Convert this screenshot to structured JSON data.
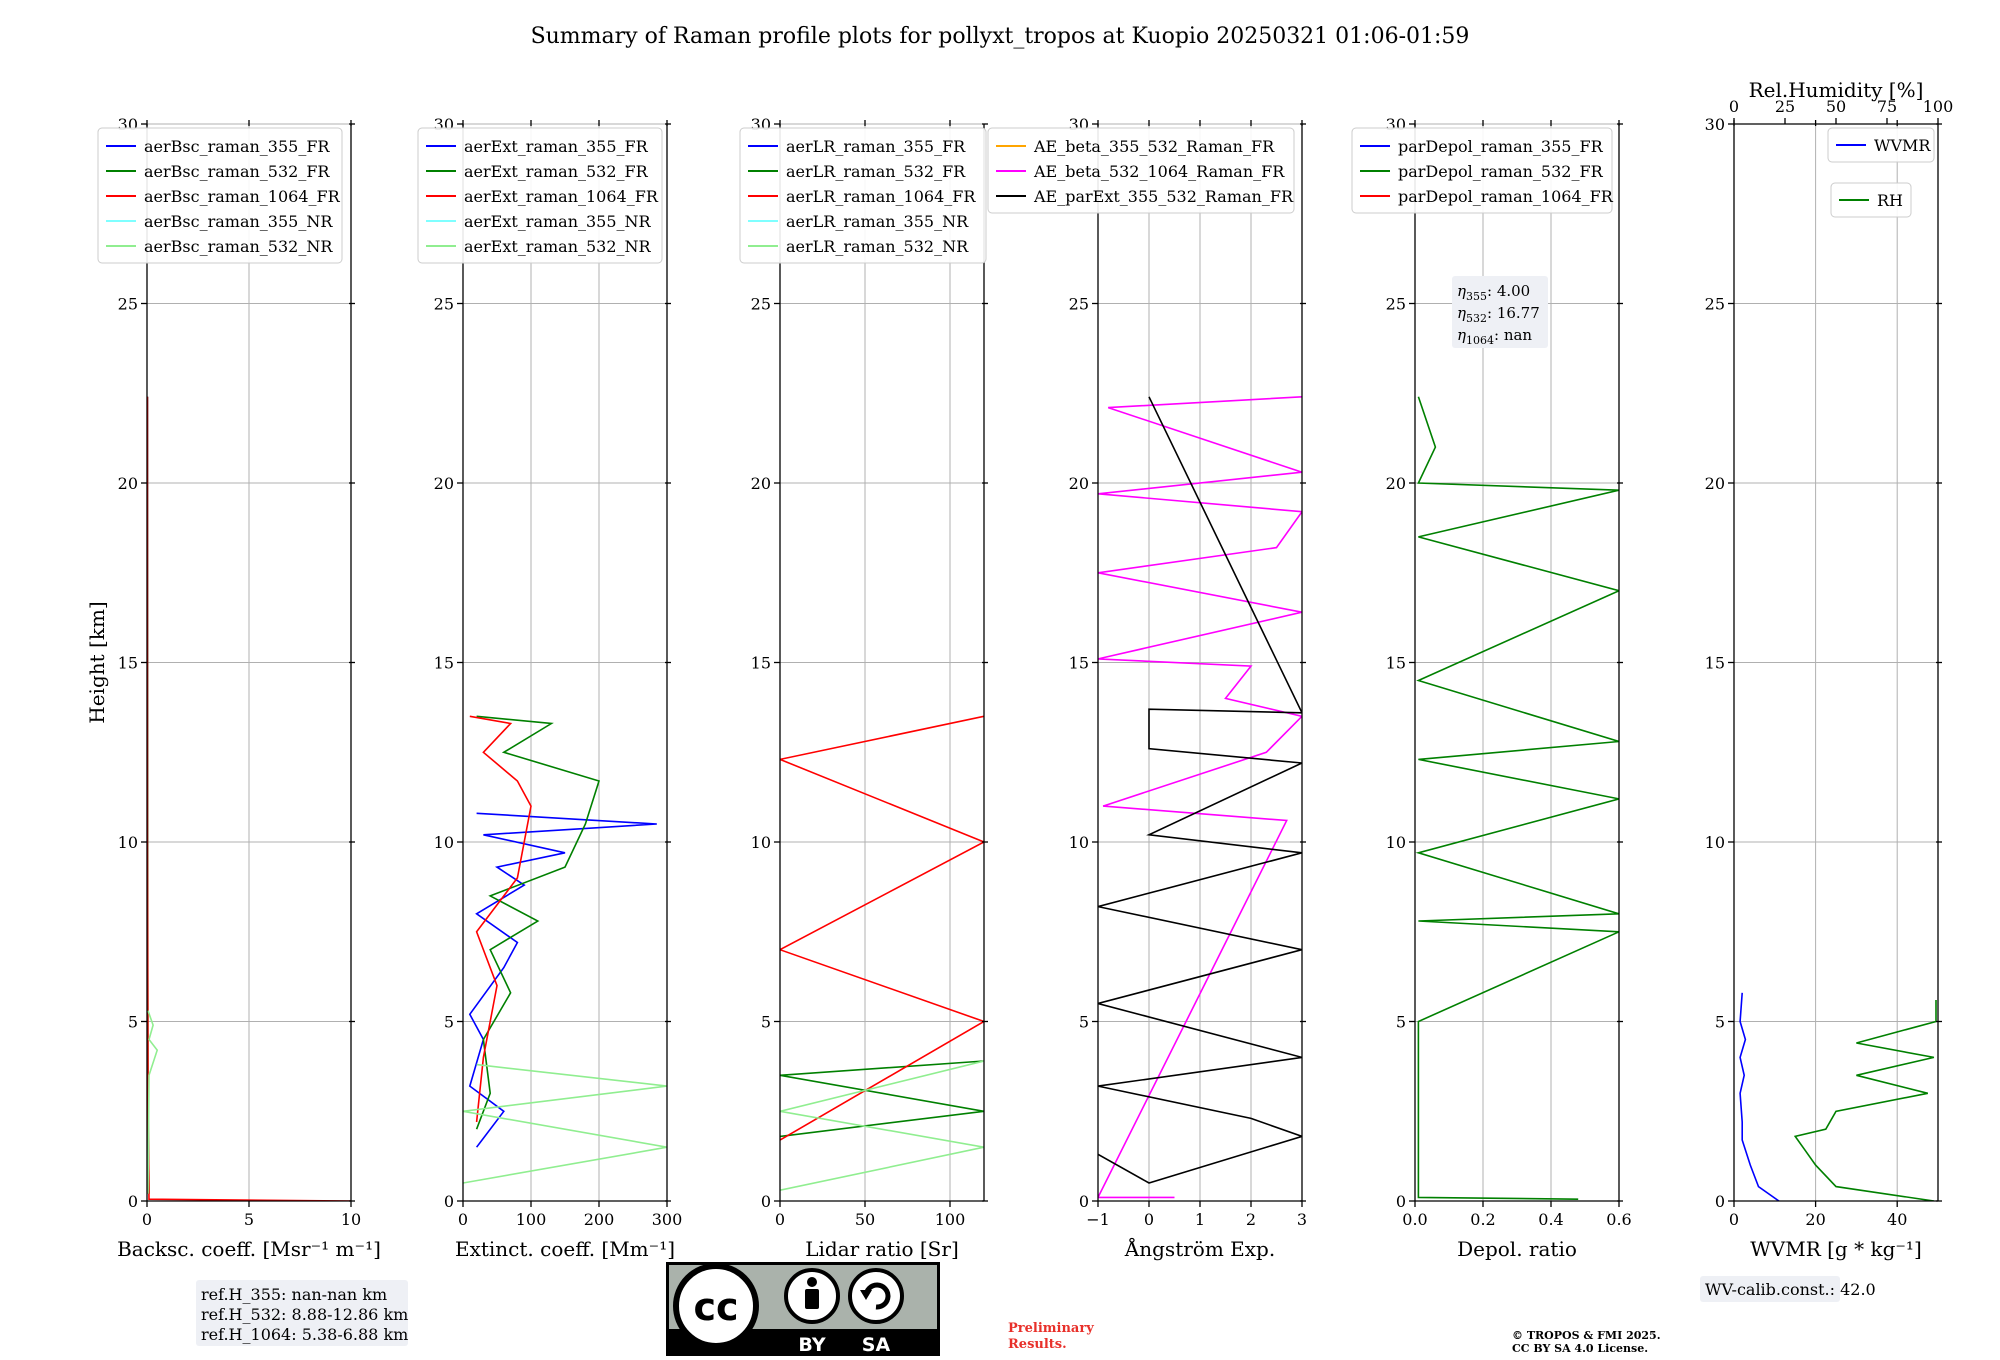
{
  "title": "Summary of Raman profile plots for pollyxt_tropos at Kuopio 20250321 01:06-01:59",
  "colors": {
    "blue": "#0000ff",
    "green": "#008000",
    "red": "#ff0000",
    "cyan": "#7fffff",
    "lightgreen": "#90ee90",
    "orange": "#ffa500",
    "magenta": "#ff00ff",
    "black": "#000000"
  },
  "chart_data": [
    {
      "type": "line",
      "panel": "backscatter",
      "ylabel": "Height [km]",
      "xlabel": "Backsc. coeff. [Msr⁻¹ m⁻¹]",
      "xlim": [
        0,
        10
      ],
      "ylim": [
        0,
        30
      ],
      "xticks": [
        0,
        5,
        10
      ],
      "xtick_labels": [
        "0",
        "5",
        "10"
      ],
      "yticks": [
        0,
        5,
        10,
        15,
        20,
        25,
        30
      ],
      "ytick_labels": [
        "0",
        "5",
        "10",
        "15",
        "20",
        "25",
        "30"
      ],
      "legend": "top-right",
      "series": [
        {
          "name": "aerBsc_raman_355_FR",
          "color": "blue",
          "points": [
            [
              0.05,
              0.2
            ],
            [
              0.03,
              3
            ],
            [
              0.02,
              10
            ],
            [
              0.02,
              22.4
            ]
          ]
        },
        {
          "name": "aerBsc_raman_532_FR",
          "color": "green",
          "points": [
            [
              0.1,
              0.2
            ],
            [
              0.05,
              3
            ],
            [
              0.03,
              10
            ],
            [
              0.02,
              22.4
            ]
          ]
        },
        {
          "name": "aerBsc_raman_1064_FR",
          "color": "red",
          "points": [
            [
              10,
              0.0
            ],
            [
              0.1,
              0.05
            ],
            [
              0.05,
              3
            ],
            [
              0.02,
              10
            ],
            [
              0.02,
              22.4
            ]
          ]
        },
        {
          "name": "aerBsc_raman_355_NR",
          "color": "cyan",
          "points": []
        },
        {
          "name": "aerBsc_raman_532_NR",
          "color": "lightgreen",
          "points": [
            [
              0.05,
              0.2
            ],
            [
              0.1,
              3.5
            ],
            [
              0.5,
              4.2
            ],
            [
              0.1,
              4.5
            ],
            [
              0.3,
              4.9
            ],
            [
              0.05,
              5.3
            ]
          ]
        }
      ],
      "info": [
        "ref.H_355: nan-nan km",
        "ref.H_532: 8.88-12.86 km",
        "ref.H_1064: 5.38-6.88 km"
      ]
    },
    {
      "type": "line",
      "panel": "extinction",
      "xlabel": "Extinct. coeff. [Mm⁻¹]",
      "xlim": [
        0,
        300
      ],
      "ylim": [
        0,
        30
      ],
      "xticks": [
        0,
        100,
        200,
        300
      ],
      "xtick_labels": [
        "0",
        "100",
        "200",
        "300"
      ],
      "yticks": [
        0,
        5,
        10,
        15,
        20,
        25,
        30
      ],
      "ytick_labels": [
        "0",
        "5",
        "10",
        "15",
        "20",
        "25",
        "30"
      ],
      "legend": "top-right",
      "series": [
        {
          "name": "aerExt_raman_355_FR",
          "color": "blue",
          "points": [
            [
              20,
              1.5
            ],
            [
              60,
              2.5
            ],
            [
              10,
              3.2
            ],
            [
              30,
              4.5
            ],
            [
              10,
              5.2
            ],
            [
              60,
              6.5
            ],
            [
              80,
              7.2
            ],
            [
              20,
              8
            ],
            [
              90,
              8.8
            ],
            [
              50,
              9.3
            ],
            [
              150,
              9.7
            ],
            [
              30,
              10.2
            ],
            [
              285,
              10.5
            ],
            [
              20,
              10.8
            ]
          ]
        },
        {
          "name": "aerExt_raman_532_FR",
          "color": "green",
          "points": [
            [
              20,
              2
            ],
            [
              40,
              3
            ],
            [
              30,
              4.5
            ],
            [
              70,
              5.8
            ],
            [
              40,
              7
            ],
            [
              110,
              7.8
            ],
            [
              40,
              8.5
            ],
            [
              150,
              9.3
            ],
            [
              180,
              10.5
            ],
            [
              200,
              11.7
            ],
            [
              60,
              12.5
            ],
            [
              130,
              13.3
            ],
            [
              20,
              13.5
            ]
          ]
        },
        {
          "name": "aerExt_raman_1064_FR",
          "color": "red",
          "points": [
            [
              20,
              2.2
            ],
            [
              30,
              4
            ],
            [
              50,
              6
            ],
            [
              20,
              7.5
            ],
            [
              80,
              9
            ],
            [
              100,
              11
            ],
            [
              80,
              11.7
            ],
            [
              30,
              12.5
            ],
            [
              70,
              13.3
            ],
            [
              10,
              13.5
            ]
          ]
        },
        {
          "name": "aerExt_raman_355_NR",
          "color": "cyan",
          "points": []
        },
        {
          "name": "aerExt_raman_532_NR",
          "color": "lightgreen",
          "points": [
            [
              0,
              0.5
            ],
            [
              300,
              1.5
            ],
            [
              0,
              2.5
            ],
            [
              300,
              3.2
            ],
            [
              20,
              3.8
            ]
          ]
        }
      ]
    },
    {
      "type": "line",
      "panel": "lidar_ratio",
      "xlabel": "Lidar ratio [Sr]",
      "xlim": [
        0,
        120
      ],
      "ylim": [
        0,
        30
      ],
      "xticks": [
        0,
        50,
        100
      ],
      "xtick_labels": [
        "0",
        "50",
        "100"
      ],
      "yticks": [
        0,
        5,
        10,
        15,
        20,
        25,
        30
      ],
      "ytick_labels": [
        "0",
        "5",
        "10",
        "15",
        "20",
        "25",
        "30"
      ],
      "legend": "top-right",
      "series": [
        {
          "name": "aerLR_raman_355_FR",
          "color": "blue",
          "points": []
        },
        {
          "name": "aerLR_raman_532_FR",
          "color": "green",
          "points": [
            [
              0,
              1.8
            ],
            [
              120,
              2.5
            ],
            [
              0,
              3.5
            ],
            [
              120,
              3.9
            ]
          ]
        },
        {
          "name": "aerLR_raman_1064_FR",
          "color": "red",
          "points": [
            [
              0,
              1.7
            ],
            [
              120,
              5
            ],
            [
              0,
              7
            ],
            [
              120,
              10
            ],
            [
              0,
              12.3
            ],
            [
              120,
              13.5
            ]
          ]
        },
        {
          "name": "aerLR_raman_355_NR",
          "color": "cyan",
          "points": []
        },
        {
          "name": "aerLR_raman_532_NR",
          "color": "lightgreen",
          "points": [
            [
              0,
              0.3
            ],
            [
              120,
              1.5
            ],
            [
              0,
              2.5
            ],
            [
              120,
              3.9
            ]
          ]
        }
      ]
    },
    {
      "type": "line",
      "panel": "angstrom",
      "xlabel": "Ångström Exp.",
      "xlim": [
        -1,
        3
      ],
      "ylim": [
        0,
        30
      ],
      "xticks": [
        -1,
        0,
        1,
        2,
        3
      ],
      "xtick_labels": [
        "−1",
        "0",
        "1",
        "2",
        "3"
      ],
      "yticks": [
        0,
        5,
        10,
        15,
        20,
        25,
        30
      ],
      "ytick_labels": [
        "0",
        "5",
        "10",
        "15",
        "20",
        "25",
        "30"
      ],
      "legend": "top-right",
      "series": [
        {
          "name": "AE_beta_355_532_Raman_FR",
          "color": "orange",
          "points": []
        },
        {
          "name": "AE_beta_532_1064_Raman_FR",
          "color": "magenta",
          "points": [
            [
              0.5,
              0.1
            ],
            [
              -1,
              0.1
            ],
            [
              2.7,
              10.6
            ],
            [
              -0.9,
              11
            ],
            [
              2.3,
              12.5
            ],
            [
              3,
              13.5
            ],
            [
              1.5,
              14
            ],
            [
              2,
              14.9
            ],
            [
              -1,
              15.1
            ],
            [
              3,
              16.4
            ],
            [
              -1,
              17.5
            ],
            [
              2.5,
              18.2
            ],
            [
              3,
              19.2
            ],
            [
              -1,
              19.7
            ],
            [
              3,
              20.3
            ],
            [
              -0.8,
              22.1
            ],
            [
              3,
              22.4
            ]
          ]
        },
        {
          "name": "AE_parExt_355_532_Raman_FR",
          "color": "black",
          "points": [
            [
              -1,
              1.3
            ],
            [
              0,
              0.5
            ],
            [
              3,
              1.8
            ],
            [
              2,
              2.3
            ],
            [
              -1,
              3.2
            ],
            [
              3,
              4
            ],
            [
              -1,
              5.5
            ],
            [
              3,
              7
            ],
            [
              -1,
              8.2
            ],
            [
              3,
              9.7
            ],
            [
              0,
              10.2
            ],
            [
              3,
              12.2
            ],
            [
              0,
              12.6
            ],
            [
              0,
              13.7
            ],
            [
              3,
              13.6
            ],
            [
              0,
              22.4
            ]
          ]
        }
      ],
      "legend_note": "legend lists AE_beta_355_532_Raman_FR, AE_beta_532_1064_Raman_FR, AE_parExt_355_532_Raman_FR"
    },
    {
      "type": "line",
      "panel": "depolarization",
      "xlabel": "Depol. ratio",
      "xlim": [
        0,
        0.6
      ],
      "ylim": [
        0,
        30
      ],
      "xticks": [
        0,
        0.2,
        0.4,
        0.6
      ],
      "xtick_labels": [
        "0.0",
        "0.2",
        "0.4",
        "0.6"
      ],
      "yticks": [
        0,
        5,
        10,
        15,
        20,
        25,
        30
      ],
      "ytick_labels": [
        "0",
        "5",
        "10",
        "15",
        "20",
        "25",
        "30"
      ],
      "legend": "top-right",
      "series": [
        {
          "name": "parDepol_raman_355_FR",
          "color": "blue",
          "points": []
        },
        {
          "name": "parDepol_raman_532_FR",
          "color": "green",
          "points": [
            [
              0.48,
              0.05
            ],
            [
              0.01,
              0.1
            ],
            [
              0.01,
              5
            ],
            [
              0.6,
              7.5
            ],
            [
              0.01,
              7.8
            ],
            [
              0.6,
              8
            ],
            [
              0.01,
              9.7
            ],
            [
              0.6,
              11.2
            ],
            [
              0.01,
              12.3
            ],
            [
              0.6,
              12.8
            ],
            [
              0.01,
              14.5
            ],
            [
              0.6,
              17
            ],
            [
              0.01,
              18.5
            ],
            [
              0.6,
              19.8
            ],
            [
              0.01,
              20
            ],
            [
              0.06,
              21
            ],
            [
              0.01,
              22.4
            ]
          ]
        },
        {
          "name": "parDepol_raman_1064_FR",
          "color": "red",
          "points": []
        }
      ],
      "eta": {
        "eta355": "4.00",
        "eta532": "16.77",
        "eta1064": "nan"
      }
    },
    {
      "type": "line",
      "panel": "water_vapor",
      "xlabel": "WVMR [g * kg⁻¹]",
      "x2label": "Rel.Humidity [%]",
      "xlim": [
        0,
        50
      ],
      "x2lim": [
        0,
        100
      ],
      "ylim": [
        0,
        30
      ],
      "xticks": [
        0,
        20,
        40
      ],
      "xtick_labels": [
        "0",
        "20",
        "40"
      ],
      "x2ticks": [
        0,
        25,
        50,
        75,
        100
      ],
      "x2tick_labels": [
        "0",
        "25",
        "50",
        "75",
        "100"
      ],
      "yticks": [
        0,
        5,
        10,
        15,
        20,
        25,
        30
      ],
      "ytick_labels": [
        "0",
        "5",
        "10",
        "15",
        "20",
        "25",
        "30"
      ],
      "legend": "top-right",
      "series": [
        {
          "name": "WVMR",
          "color": "blue",
          "points": [
            [
              11,
              0
            ],
            [
              6,
              0.4
            ],
            [
              4,
              1.0
            ],
            [
              2,
              1.7
            ],
            [
              2,
              2.2
            ],
            [
              1.5,
              3
            ],
            [
              2.5,
              3.5
            ],
            [
              1.5,
              4
            ],
            [
              2.8,
              4.5
            ],
            [
              1.5,
              5
            ],
            [
              2,
              5.8
            ]
          ]
        },
        {
          "name": "RH",
          "color": "green",
          "points": [
            [
              98,
              0
            ],
            [
              50,
              0.4
            ],
            [
              40,
              1.0
            ],
            [
              35,
              1.4
            ],
            [
              30,
              1.8
            ],
            [
              45,
              2
            ],
            [
              50,
              2.5
            ],
            [
              95,
              3
            ],
            [
              60,
              3.5
            ],
            [
              98,
              4
            ],
            [
              60,
              4.4
            ],
            [
              99,
              5
            ],
            [
              99,
              5.6
            ]
          ]
        }
      ],
      "info": "WV-calib.const.: 42.0"
    }
  ],
  "footer": {
    "cc_label_by": "BY",
    "cc_label_sa": "SA",
    "cc_symbol": "cc",
    "preliminary_line1": "Preliminary",
    "preliminary_line2": "Results.",
    "copyright_line1": "© TROPOS & FMI 2025.",
    "copyright_line2": "CC BY SA 4.0 License."
  }
}
